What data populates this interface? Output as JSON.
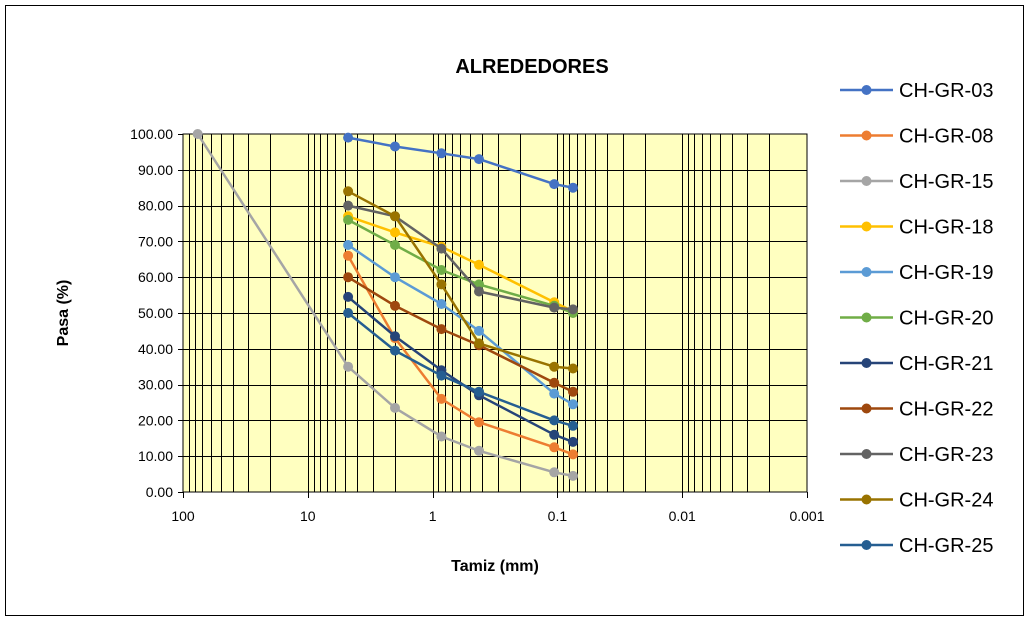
{
  "chart_data": {
    "type": "line",
    "title": "ALREDEDORES",
    "xlabel": "Tamiz (mm)",
    "ylabel": "Pasa (%)",
    "x_scale": "log",
    "x_reversed": true,
    "xlim": [
      100,
      0.001
    ],
    "ylim": [
      0,
      100
    ],
    "yticks": [
      "100.00",
      "90.00",
      "80.00",
      "70.00",
      "60.00",
      "50.00",
      "40.00",
      "30.00",
      "20.00",
      "10.00",
      "0.00"
    ],
    "xticks": [
      "100",
      "10",
      "1",
      "0.1",
      "0.01",
      "0.001"
    ],
    "grid": true,
    "plot_background": "#ffffc0",
    "legend_position": "right",
    "series": [
      {
        "name": "CH-GR-03",
        "color": "#4472c4",
        "x": [
          4.75,
          2.0,
          0.85,
          0.425,
          0.106,
          0.075
        ],
        "y": [
          99.0,
          96.5,
          94.6,
          93.0,
          86.0,
          85.0
        ]
      },
      {
        "name": "CH-GR-08",
        "color": "#ed7d31",
        "x": [
          4.75,
          2.0,
          0.85,
          0.425,
          0.106,
          0.075
        ],
        "y": [
          66.0,
          43.0,
          26.0,
          19.5,
          12.5,
          10.5
        ]
      },
      {
        "name": "CH-GR-15",
        "color": "#a5a5a5",
        "x": [
          76.2,
          4.75,
          2.0,
          0.85,
          0.425,
          0.106,
          0.075
        ],
        "y": [
          100.0,
          35.0,
          23.5,
          15.5,
          11.5,
          5.5,
          4.5
        ]
      },
      {
        "name": "CH-GR-18",
        "color": "#ffc000",
        "x": [
          4.75,
          2.0,
          0.85,
          0.425,
          0.106,
          0.075
        ],
        "y": [
          77.0,
          72.5,
          68.5,
          63.5,
          53.0,
          50.5
        ]
      },
      {
        "name": "CH-GR-19",
        "color": "#5b9bd5",
        "x": [
          4.75,
          2.0,
          0.85,
          0.425,
          0.106,
          0.075
        ],
        "y": [
          69.0,
          60.0,
          52.5,
          45.0,
          27.5,
          24.5
        ]
      },
      {
        "name": "CH-GR-20",
        "color": "#70ad47",
        "x": [
          4.75,
          2.0,
          0.85,
          0.425,
          0.106,
          0.075
        ],
        "y": [
          76.0,
          69.0,
          62.0,
          58.0,
          52.0,
          50.0
        ]
      },
      {
        "name": "CH-GR-21",
        "color": "#264478",
        "x": [
          4.75,
          2.0,
          0.85,
          0.425,
          0.106,
          0.075
        ],
        "y": [
          54.5,
          43.5,
          34.0,
          27.0,
          16.0,
          14.0
        ]
      },
      {
        "name": "CH-GR-22",
        "color": "#9e480e",
        "x": [
          4.75,
          2.0,
          0.85,
          0.425,
          0.106,
          0.075
        ],
        "y": [
          60.0,
          52.0,
          45.5,
          41.0,
          30.5,
          28.0
        ]
      },
      {
        "name": "CH-GR-23",
        "color": "#636363",
        "x": [
          4.75,
          2.0,
          0.85,
          0.425,
          0.106,
          0.075
        ],
        "y": [
          80.0,
          77.0,
          68.0,
          56.0,
          51.5,
          51.0
        ]
      },
      {
        "name": "CH-GR-24",
        "color": "#997300",
        "x": [
          4.75,
          2.0,
          0.85,
          0.425,
          0.106,
          0.075
        ],
        "y": [
          84.0,
          77.0,
          58.0,
          41.5,
          35.0,
          34.5
        ]
      },
      {
        "name": "CH-GR-25",
        "color": "#255e91",
        "x": [
          4.75,
          2.0,
          0.85,
          0.425,
          0.106,
          0.075
        ],
        "y": [
          50.0,
          39.5,
          32.5,
          28.0,
          20.0,
          18.5
        ]
      }
    ]
  }
}
